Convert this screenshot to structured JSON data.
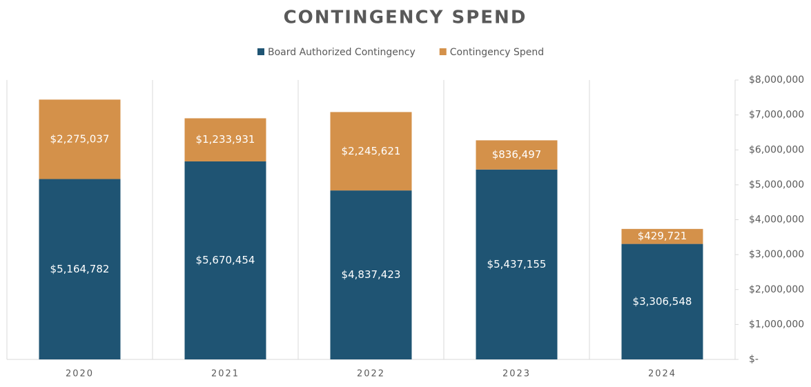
{
  "chart_data": {
    "type": "stacked_bar",
    "title": "CONTINGENCY SPEND",
    "categories": [
      "2020",
      "2021",
      "2022",
      "2023",
      "2024"
    ],
    "series": [
      {
        "name": "Board Authorized Contingency",
        "color": "#1f5473",
        "values": [
          5164782,
          5670454,
          4837423,
          5437155,
          3306548
        ],
        "value_labels": [
          "$5,164,782",
          "$5,670,454",
          "$4,837,423",
          "$5,437,155",
          "$3,306,548"
        ]
      },
      {
        "name": "Contingency Spend",
        "color": "#d4914a",
        "values": [
          2275037,
          1233931,
          2245621,
          836497,
          429721
        ],
        "value_labels": [
          "$2,275,037",
          "$1,233,931",
          "$2,245,621",
          "$836,497",
          "$429,721"
        ]
      }
    ],
    "ylim": [
      0,
      8000000
    ],
    "yticks": [
      {
        "value": 0,
        "label": "$-"
      },
      {
        "value": 1000000,
        "label": "$1,000,000"
      },
      {
        "value": 2000000,
        "label": "$2,000,000"
      },
      {
        "value": 3000000,
        "label": "$3,000,000"
      },
      {
        "value": 4000000,
        "label": "$4,000,000"
      },
      {
        "value": 5000000,
        "label": "$5,000,000"
      },
      {
        "value": 6000000,
        "label": "$6,000,000"
      },
      {
        "value": 7000000,
        "label": "$7,000,000"
      },
      {
        "value": 8000000,
        "label": "$8,000,000"
      }
    ],
    "legend": "top"
  }
}
